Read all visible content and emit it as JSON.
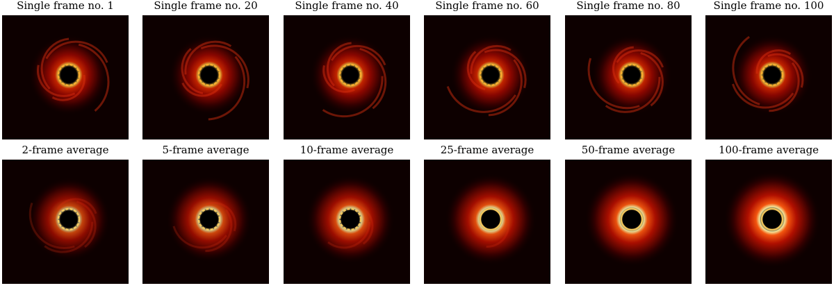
{
  "panels": [
    {
      "title": "Single frame no. 1"
    },
    {
      "title": "Single frame no. 20"
    },
    {
      "title": "Single frame no. 40"
    },
    {
      "title": "Single frame no. 60"
    },
    {
      "title": "Single frame no. 80"
    },
    {
      "title": "Single frame no. 100"
    },
    {
      "title": "2-frame average"
    },
    {
      "title": "5-frame average"
    },
    {
      "title": "10-frame average"
    },
    {
      "title": "25-frame average"
    },
    {
      "title": "50-frame average"
    },
    {
      "title": "100-frame average"
    }
  ]
}
